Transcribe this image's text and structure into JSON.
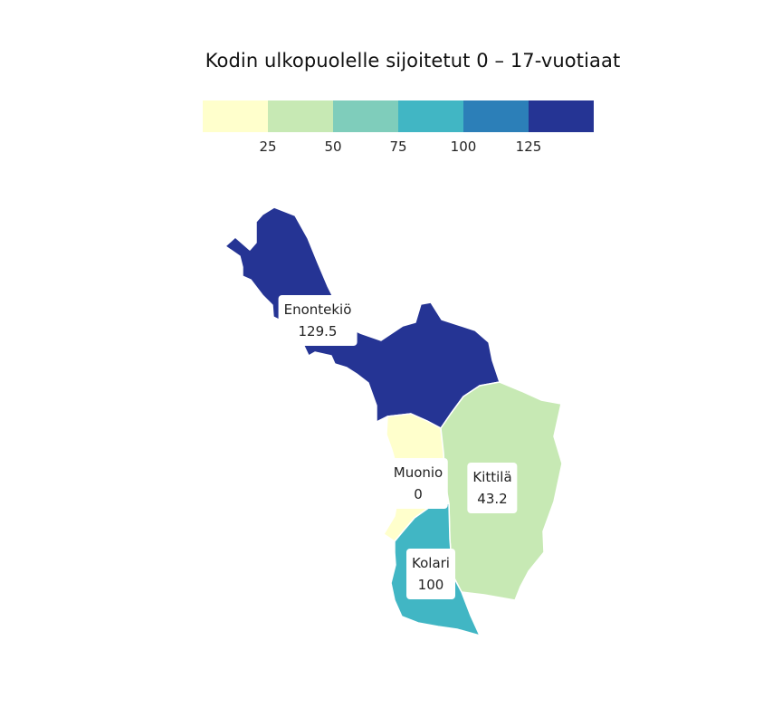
{
  "title": "Kodin ulkopuolelle sijoitetut 0 – 17-vuotiaat",
  "legend": {
    "colors": [
      "#ffffcc",
      "#c7e9b4",
      "#7fcdbb",
      "#41b6c4",
      "#2c7fb8",
      "#253494"
    ],
    "ticks": [
      "25",
      "50",
      "75",
      "100",
      "125"
    ]
  },
  "regions": [
    {
      "name": "Enontekiö",
      "value_label": "129.5",
      "value": 129.5,
      "color": "#253494"
    },
    {
      "name": "Muonio",
      "value_label": "0",
      "value": 0,
      "color": "#ffffcc"
    },
    {
      "name": "Kittilä",
      "value_label": "43.2",
      "value": 43.2,
      "color": "#c7e9b4"
    },
    {
      "name": "Kolari",
      "value_label": "100",
      "value": 100,
      "color": "#41b6c4"
    }
  ]
}
